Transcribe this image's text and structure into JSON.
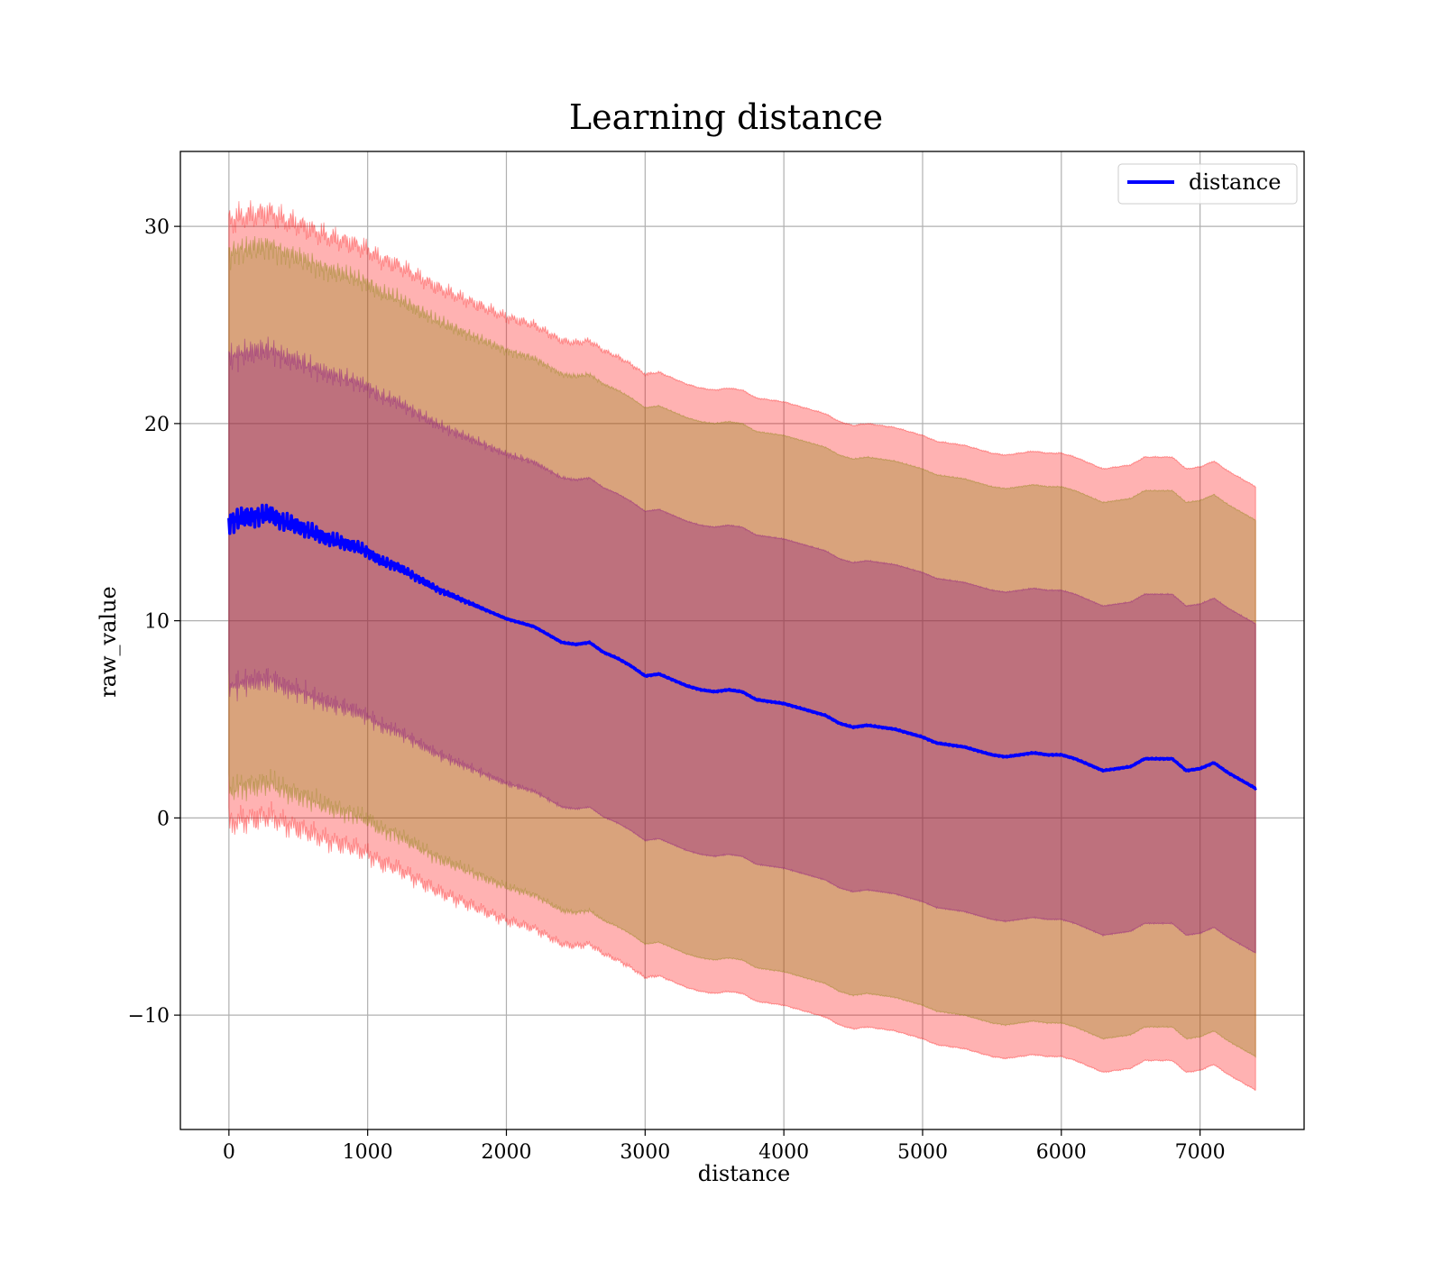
{
  "chart_data": {
    "type": "line",
    "title": "Learning distance",
    "xlabel": "distance",
    "ylabel": "raw_value",
    "xlim": [
      -350,
      7750
    ],
    "ylim": [
      -15.8,
      33.8
    ],
    "xticks": [
      0,
      1000,
      2000,
      3000,
      4000,
      5000,
      6000,
      7000
    ],
    "xtick_labels": [
      "0",
      "1000",
      "2000",
      "3000",
      "4000",
      "5000",
      "6000",
      "7000"
    ],
    "yticks": [
      -10,
      0,
      10,
      20,
      30
    ],
    "ytick_labels": [
      "−10",
      "0",
      "10",
      "20",
      "30"
    ],
    "grid": true,
    "legend": {
      "placement": "top-right",
      "entries": [
        "distance"
      ]
    },
    "colors": {
      "line": "#0000ff",
      "band_outer": "#ff0000",
      "band_middle": "#808000",
      "band_inner": "#800080"
    },
    "series": [
      {
        "name": "distance",
        "x": [
          0,
          100,
          200,
          300,
          400,
          500,
          600,
          700,
          800,
          900,
          1000,
          1100,
          1200,
          1300,
          1400,
          1500,
          1600,
          1700,
          1800,
          1900,
          2000,
          2100,
          2200,
          2300,
          2400,
          2500,
          2600,
          2700,
          2800,
          2900,
          3000,
          3100,
          3200,
          3300,
          3400,
          3500,
          3600,
          3700,
          3800,
          3900,
          4000,
          4100,
          4200,
          4300,
          4400,
          4500,
          4600,
          4700,
          4800,
          4900,
          5000,
          5100,
          5200,
          5300,
          5400,
          5500,
          5600,
          5700,
          5800,
          5900,
          6000,
          6100,
          6200,
          6300,
          6400,
          6500,
          6600,
          6700,
          6800,
          6900,
          7000,
          7100,
          7200,
          7300,
          7400
        ],
        "values": [
          15.0,
          15.2,
          15.3,
          15.4,
          15.0,
          14.8,
          14.5,
          14.2,
          14.0,
          13.8,
          13.5,
          13.0,
          12.8,
          12.4,
          12.0,
          11.6,
          11.3,
          11.0,
          10.7,
          10.4,
          10.1,
          9.9,
          9.7,
          9.3,
          8.9,
          8.8,
          8.9,
          8.4,
          8.1,
          7.7,
          7.2,
          7.3,
          7.0,
          6.7,
          6.5,
          6.4,
          6.5,
          6.4,
          6.0,
          5.9,
          5.8,
          5.6,
          5.4,
          5.2,
          4.8,
          4.6,
          4.7,
          4.6,
          4.5,
          4.3,
          4.1,
          3.8,
          3.7,
          3.6,
          3.4,
          3.2,
          3.1,
          3.2,
          3.3,
          3.2,
          3.2,
          3.0,
          2.7,
          2.4,
          2.5,
          2.6,
          3.0,
          3.0,
          3.0,
          2.4,
          2.5,
          2.8,
          2.3,
          1.9,
          1.5
        ]
      }
    ],
    "bands": [
      {
        "color": "band_outer",
        "offset": 15.3
      },
      {
        "color": "band_middle",
        "offset": 13.6
      },
      {
        "color": "band_inner",
        "offset": 8.35
      }
    ]
  }
}
